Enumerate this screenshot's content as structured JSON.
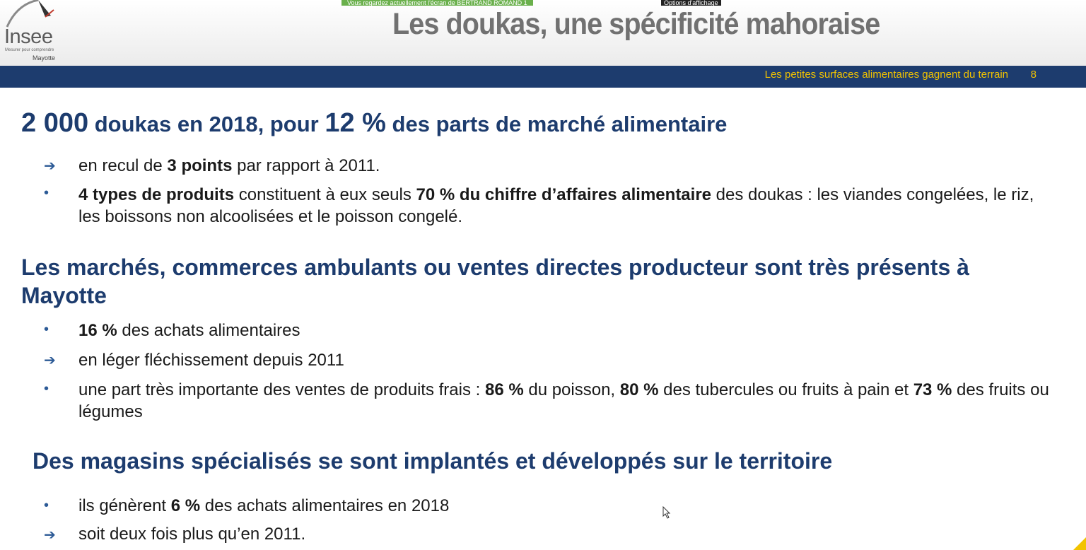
{
  "app": {
    "share_banner": "Vous regardez actuellement l'écran de BERTRAND ROMAND 1",
    "share_options": "Options d'affichage"
  },
  "logo": {
    "name": "Insee",
    "tagline": "Mesurer pour comprendre",
    "region": "Mayotte"
  },
  "slide": {
    "title": "Les doukas, une spécificité mahoraise",
    "subtitle": "Les petites surfaces alimentaires gagnent du terrain",
    "page_number": "8",
    "section1": {
      "n1": "2 000",
      "t1": " doukas en 2018, pour ",
      "n2": "12 %",
      "t2": " des parts de marché alimentaire",
      "items": [
        {
          "a": "en recul de ",
          "b": "3 points",
          "c": " par rapport à 2011."
        },
        {
          "b1": "4 types de produits",
          "a1": " constituent à eux seuls ",
          "b2": "70 % du chiffre d’affaires alimentaire",
          "a2": " des doukas : les viandes congelées, le riz, les boissons non alcoolisées et le poisson congelé."
        }
      ]
    },
    "section2": {
      "heading": "Les marchés, commerces ambulants ou ventes directes producteur sont très présents à Mayotte",
      "items": [
        {
          "b": "16 %",
          "c": " des achats alimentaires"
        },
        {
          "a": "en léger fléchissement depuis 2011"
        },
        {
          "a1": "une part très importante des ventes de produits frais : ",
          "b1": "86 %",
          "a2": " du poisson, ",
          "b2": "80 %",
          "a3": " des tubercules ou fruits à pain et ",
          "b3": "73 %",
          "a4": " des fruits ou légumes"
        }
      ]
    },
    "section3": {
      "heading": "Des magasins spécialisés se sont implantés et développés sur le territoire",
      "items": [
        {
          "a": "ils génèrent ",
          "b": "6 %",
          "c": " des achats alimentaires en 2018"
        },
        {
          "a": "soit deux fois plus qu’en 2011."
        }
      ]
    }
  },
  "colors": {
    "heading": "#1d3c6e",
    "bar": "#1d3c6e",
    "subtitle": "#f2c300",
    "title": "#717171"
  }
}
